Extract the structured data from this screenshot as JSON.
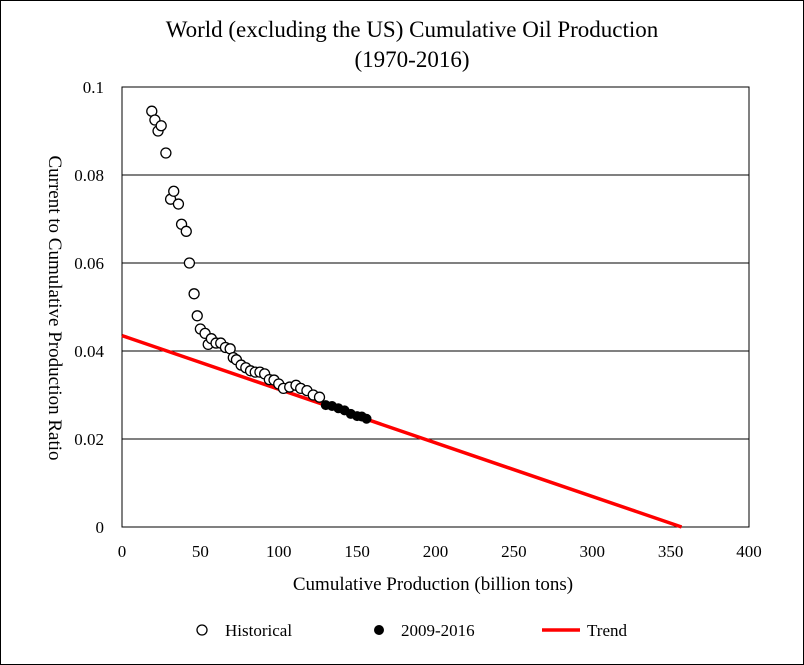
{
  "chart_data": {
    "type": "scatter",
    "title": "World (excluding the US) Cumulative Oil Production",
    "subtitle": "(1970-2016)",
    "xlabel": "Cumulative Production (billion tons)",
    "ylabel": "Current to Cumulative Production Ratio",
    "xlim": [
      0,
      400
    ],
    "ylim": [
      0,
      0.1
    ],
    "x_ticks": [
      0,
      50,
      100,
      150,
      200,
      250,
      300,
      350,
      400
    ],
    "y_ticks": [
      0,
      0.02,
      0.04,
      0.06,
      0.08,
      0.1
    ],
    "x_tick_labels": [
      "0",
      "50",
      "100",
      "150",
      "200",
      "250",
      "300",
      "350",
      "400"
    ],
    "y_tick_labels": [
      "0",
      "0.02",
      "0.04",
      "0.06",
      "0.08",
      "0.1"
    ],
    "grid": "horizontal",
    "legend_position": "bottom",
    "series": [
      {
        "name": "Historical",
        "marker": "open-circle",
        "color": "#000000",
        "points": [
          [
            19,
            0.0945
          ],
          [
            21,
            0.0925
          ],
          [
            23,
            0.09
          ],
          [
            25,
            0.0912
          ],
          [
            28,
            0.085
          ],
          [
            31,
            0.0745
          ],
          [
            33,
            0.0763
          ],
          [
            36,
            0.0734
          ],
          [
            38,
            0.0688
          ],
          [
            41,
            0.0672
          ],
          [
            43,
            0.06
          ],
          [
            46,
            0.053
          ],
          [
            48,
            0.048
          ],
          [
            50,
            0.045
          ],
          [
            53,
            0.044
          ],
          [
            55,
            0.0415
          ],
          [
            57,
            0.0428
          ],
          [
            60,
            0.0418
          ],
          [
            63,
            0.0418
          ],
          [
            66,
            0.0408
          ],
          [
            69,
            0.0405
          ],
          [
            71,
            0.0385
          ],
          [
            73,
            0.038
          ],
          [
            76,
            0.0368
          ],
          [
            79,
            0.0362
          ],
          [
            82,
            0.0355
          ],
          [
            85,
            0.0352
          ],
          [
            88,
            0.0352
          ],
          [
            91,
            0.0348
          ],
          [
            94,
            0.0335
          ],
          [
            97,
            0.0334
          ],
          [
            100,
            0.0325
          ],
          [
            103,
            0.0315
          ],
          [
            107,
            0.0318
          ],
          [
            111,
            0.0322
          ],
          [
            114,
            0.0315
          ],
          [
            118,
            0.031
          ],
          [
            122,
            0.03
          ],
          [
            126,
            0.0295
          ]
        ]
      },
      {
        "name": "2009-2016",
        "marker": "filled-circle",
        "color": "#000000",
        "points": [
          [
            130,
            0.0277
          ],
          [
            134,
            0.0275
          ],
          [
            138,
            0.027
          ],
          [
            142,
            0.0265
          ],
          [
            146,
            0.0257
          ],
          [
            150,
            0.0252
          ],
          [
            153,
            0.0251
          ],
          [
            156,
            0.0246
          ]
        ]
      },
      {
        "name": "Trend",
        "type": "line",
        "color": "#ff0000",
        "points": [
          [
            0,
            0.0435
          ],
          [
            357,
            0
          ]
        ]
      }
    ]
  }
}
